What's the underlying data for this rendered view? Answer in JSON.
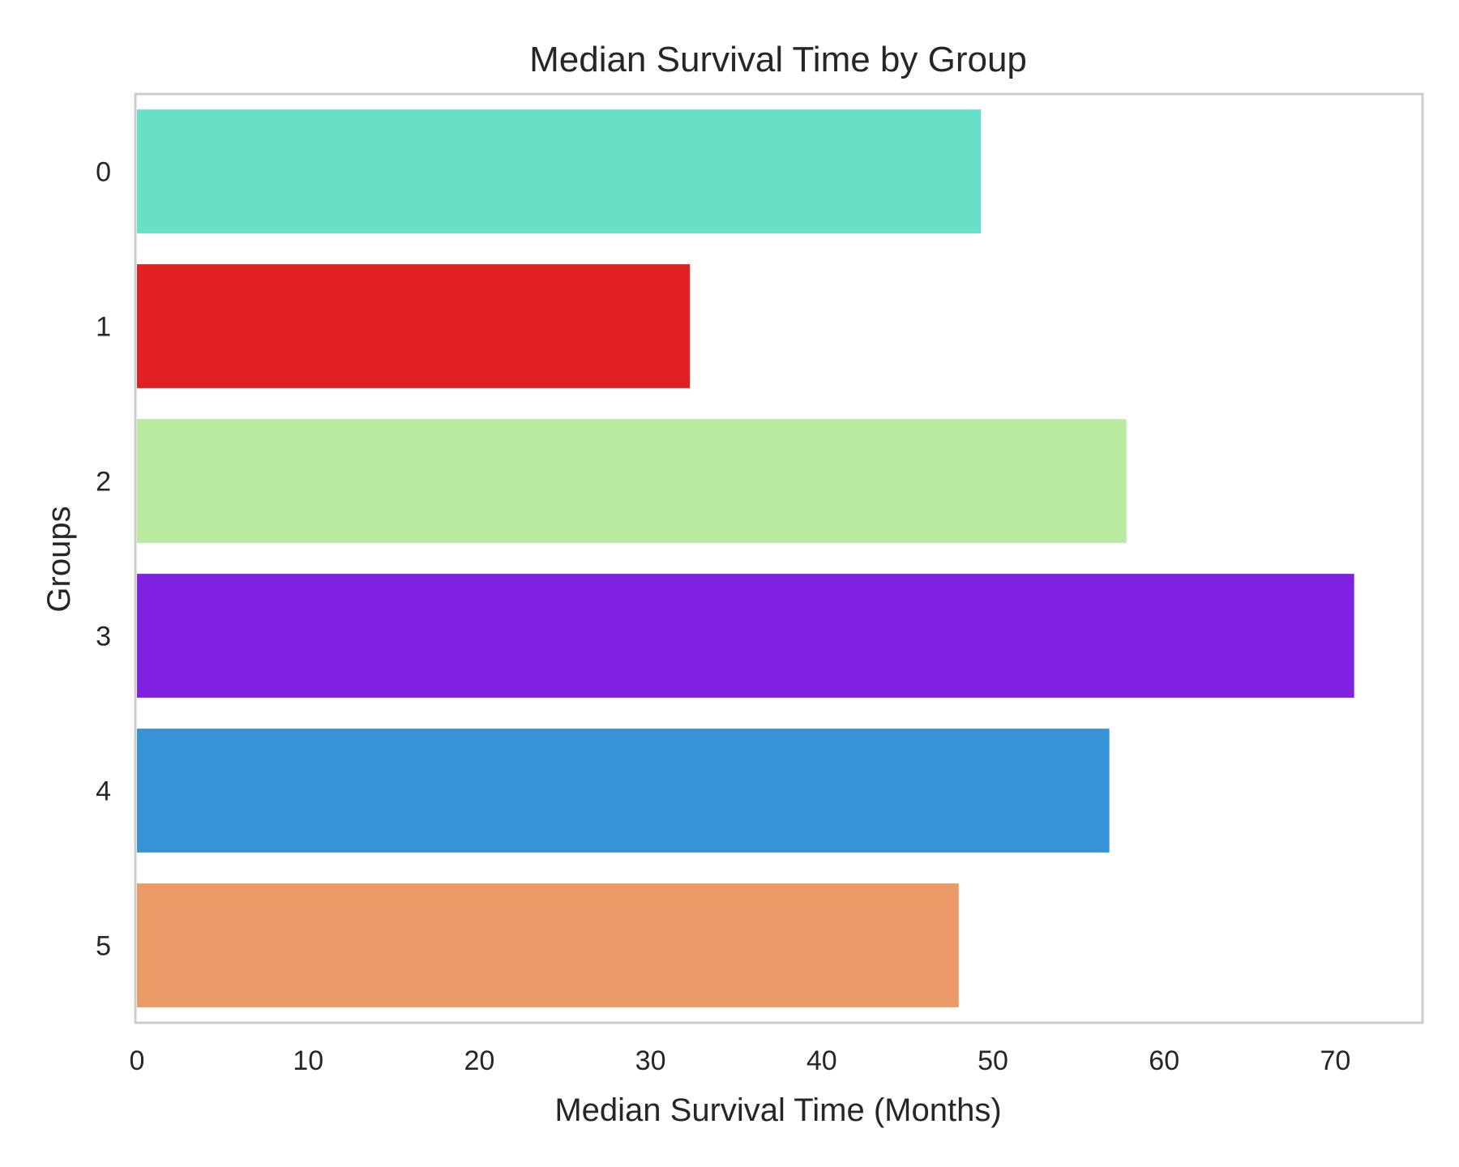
{
  "chart_data": {
    "type": "bar",
    "orientation": "horizontal",
    "title": "Median Survival Time by Group",
    "xlabel": "Median Survival Time (Months)",
    "ylabel": "Groups",
    "categories": [
      "0",
      "1",
      "2",
      "3",
      "4",
      "5"
    ],
    "values": [
      49.3,
      32.3,
      57.8,
      71.1,
      56.8,
      48.0
    ],
    "colors": [
      "#66e0c6",
      "#e02022",
      "#bae9a0",
      "#7e21e0",
      "#3693d8",
      "#ea9a66"
    ],
    "xlim": [
      0,
      75
    ],
    "xticks": [
      0,
      10,
      20,
      30,
      40,
      50,
      60,
      70
    ],
    "grid": false,
    "legend": "none"
  }
}
